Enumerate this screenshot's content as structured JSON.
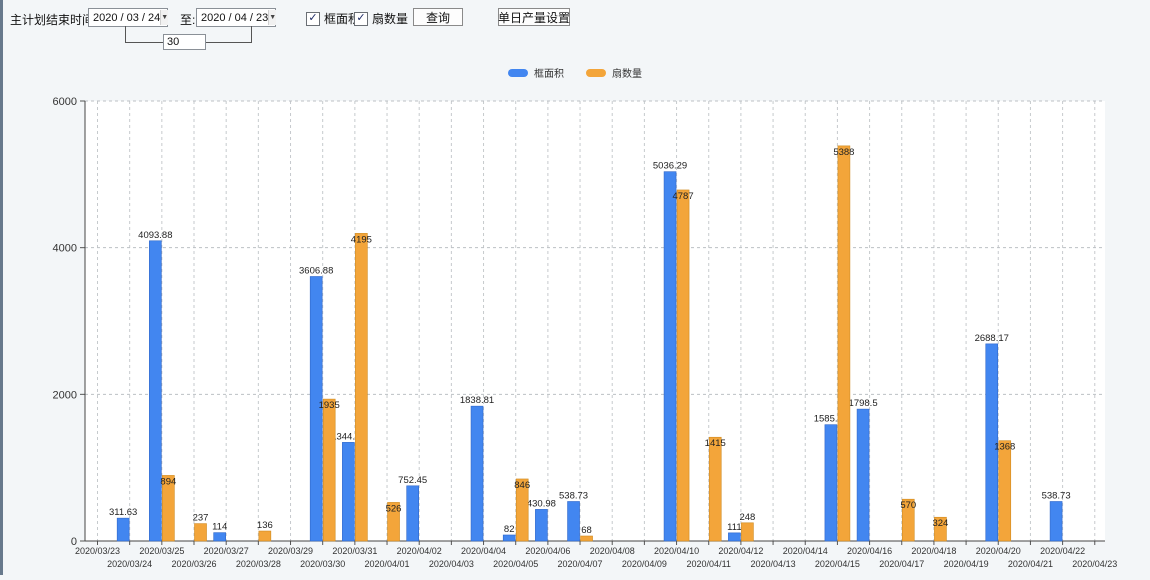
{
  "window": {
    "left_strip_color": "#67798c",
    "background_color": "#f3f6f8"
  },
  "toolbar": {
    "label": "主计划结束时间:",
    "date_from": "2020 / 03 / 24",
    "to_label": "至:",
    "date_to": "2020 / 04 / 23",
    "days_value": "30",
    "checkboxes": [
      {
        "label": "框面积",
        "checked": true
      },
      {
        "label": "扇数量",
        "checked": true
      }
    ],
    "query_button": "查询",
    "daily_output_button": "单日产量设置",
    "check_glyph": "✓",
    "arrow_glyph": "▼"
  },
  "legend": [
    {
      "label": "框面积",
      "color": "#4286f0"
    },
    {
      "label": "扇数量",
      "color": "#f3a53a"
    }
  ],
  "chart_data": {
    "type": "bar",
    "title": "",
    "xlabel": "",
    "ylabel": "",
    "ylim": [
      0,
      6000
    ],
    "yticks": [
      0,
      2000,
      4000,
      6000
    ],
    "grid": true,
    "legend_position": "top",
    "categories": [
      "2020/03/23",
      "2020/03/24",
      "2020/03/25",
      "2020/03/26",
      "2020/03/27",
      "2020/03/28",
      "2020/03/29",
      "2020/03/30",
      "2020/03/31",
      "2020/04/01",
      "2020/04/02",
      "2020/04/03",
      "2020/04/04",
      "2020/04/05",
      "2020/04/06",
      "2020/04/07",
      "2020/04/08",
      "2020/04/09",
      "2020/04/10",
      "2020/04/11",
      "2020/04/12",
      "2020/04/13",
      "2020/04/14",
      "2020/04/15",
      "2020/04/16",
      "2020/04/17",
      "2020/04/18",
      "2020/04/19",
      "2020/04/20",
      "2020/04/21",
      "2020/04/22",
      "2020/04/23"
    ],
    "series": [
      {
        "name": "框面积",
        "color": "#4286f0",
        "edge": "#2e66c9",
        "values": [
          null,
          311.63,
          4093.88,
          null,
          114,
          null,
          null,
          3606.88,
          1344.95,
          null,
          752.45,
          null,
          1838.81,
          82,
          430.98,
          538.73,
          null,
          null,
          5036.29,
          null,
          111,
          null,
          null,
          1585.96,
          1798.5,
          null,
          null,
          null,
          2688.17,
          null,
          538.73,
          null
        ]
      },
      {
        "name": "扇数量",
        "color": "#f3a53a",
        "edge": "#cf8a1f",
        "values": [
          null,
          null,
          894,
          237,
          null,
          136,
          null,
          1935,
          4195,
          526,
          null,
          null,
          null,
          846,
          null,
          68,
          null,
          null,
          4787,
          1415,
          248,
          null,
          null,
          5388,
          null,
          570,
          324,
          null,
          1368,
          null,
          null,
          null
        ]
      }
    ]
  }
}
